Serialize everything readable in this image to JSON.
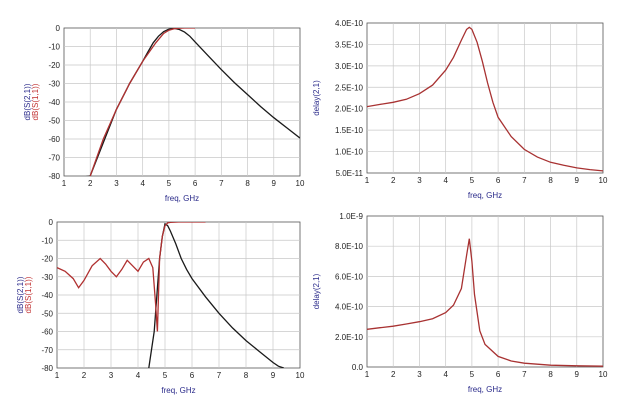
{
  "colors": {
    "s21": "#1a1a1a",
    "s11": "#b03030",
    "delay": "#a83232",
    "label_red": "#c03030",
    "label_blue": "#2a2a8a"
  },
  "chart_data": [
    {
      "type": "line",
      "xlabel": "freq, GHz",
      "ylabel_lines": [
        "dB(S(2,1))",
        "dB(S(1,1))"
      ],
      "xlim": [
        1,
        10
      ],
      "ylim": [
        -80,
        0
      ],
      "xticks": [
        "1",
        "2",
        "3",
        "4",
        "5",
        "6",
        "7",
        "8",
        "9",
        "10"
      ],
      "yticks": [
        "0",
        "-10",
        "-20",
        "-30",
        "-40",
        "-50",
        "-60",
        "-70",
        "-80"
      ],
      "series": [
        {
          "name": "dB(S(2,1))",
          "color": "#1a1a1a",
          "x": [
            1.0,
            2.0,
            3.0,
            3.5,
            4.0,
            4.2,
            4.4,
            4.6,
            4.8,
            5.0,
            5.2,
            5.4,
            5.6,
            5.8,
            6.0,
            6.5,
            7.0,
            7.5,
            8.0,
            8.5,
            9.0,
            9.5,
            10.0
          ],
          "y": [
            -82,
            -80,
            -44,
            -30,
            -18,
            -13,
            -8,
            -4.5,
            -2,
            -0.6,
            -0.2,
            -0.8,
            -2.2,
            -4.5,
            -7.5,
            -15,
            -22.5,
            -29.5,
            -36,
            -42.5,
            -48.5,
            -54,
            -59.5
          ]
        },
        {
          "name": "dB(S(1,1))",
          "color": "#b03030",
          "x": [
            2.0,
            2.5,
            3.0,
            3.5,
            4.0,
            4.5,
            4.8,
            5.0,
            5.2,
            5.4,
            5.6,
            5.8,
            6.0
          ],
          "y": [
            -80,
            -60,
            -44,
            -30,
            -18,
            -8,
            -3,
            -1.2,
            -0.4,
            -0.1,
            0,
            0,
            0
          ]
        }
      ]
    },
    {
      "type": "line",
      "xlabel": "freq, GHz",
      "ylabel_lines": [
        "delay(2,1)"
      ],
      "xlim": [
        1,
        10
      ],
      "ylim": [
        5e-11,
        4e-10
      ],
      "xticks": [
        "1",
        "2",
        "3",
        "4",
        "5",
        "6",
        "7",
        "8",
        "9",
        "10"
      ],
      "yticks": [
        "4.0E-10",
        "3.5E-10",
        "3.0E-10",
        "2.5E-10",
        "2.0E-10",
        "1.5E-10",
        "1.0E-10",
        "5.0E-11"
      ],
      "series": [
        {
          "name": "delay(2,1)",
          "color": "#a83232",
          "x": [
            1.0,
            1.5,
            2.0,
            2.5,
            3.0,
            3.5,
            4.0,
            4.3,
            4.6,
            4.8,
            4.9,
            5.0,
            5.2,
            5.4,
            5.6,
            5.8,
            6.0,
            6.5,
            7.0,
            7.5,
            8.0,
            8.5,
            9.0,
            9.5,
            10.0
          ],
          "y": [
            2.05e-10,
            2.1e-10,
            2.15e-10,
            2.22e-10,
            2.35e-10,
            2.55e-10,
            2.9e-10,
            3.2e-10,
            3.6e-10,
            3.85e-10,
            3.9e-10,
            3.85e-10,
            3.55e-10,
            3.1e-10,
            2.6e-10,
            2.15e-10,
            1.8e-10,
            1.35e-10,
            1.05e-10,
            8.7e-11,
            7.5e-11,
            6.8e-11,
            6.2e-11,
            5.8e-11,
            5.5e-11
          ]
        }
      ]
    },
    {
      "type": "line",
      "xlabel": "freq, GHz",
      "ylabel_lines": [
        "dB(S(2,1))",
        "dB(S(1,1))"
      ],
      "xlim": [
        1,
        10
      ],
      "ylim": [
        -80,
        0
      ],
      "xticks": [
        "1",
        "2",
        "3",
        "4",
        "5",
        "6",
        "7",
        "8",
        "9",
        "10"
      ],
      "yticks": [
        "0",
        "-10",
        "-20",
        "-30",
        "-40",
        "-50",
        "-60",
        "-70",
        "-80"
      ],
      "series": [
        {
          "name": "dB(S(2,1))",
          "color": "#1a1a1a",
          "x": [
            4.4,
            4.6,
            4.8,
            4.9,
            5.0,
            5.1,
            5.2,
            5.4,
            5.6,
            5.8,
            6.0,
            6.5,
            7.0,
            7.5,
            8.0,
            8.5,
            9.0,
            9.2,
            9.4
          ],
          "y": [
            -80,
            -60,
            -20,
            -8,
            -1,
            -2,
            -5,
            -12,
            -20,
            -26,
            -31,
            -41,
            -50,
            -58,
            -65,
            -71,
            -77,
            -79,
            -80
          ]
        },
        {
          "name": "dB(S(1,1))",
          "color": "#b03030",
          "x": [
            1.0,
            1.3,
            1.6,
            1.8,
            2.0,
            2.3,
            2.6,
            2.8,
            3.0,
            3.2,
            3.4,
            3.6,
            3.8,
            4.0,
            4.2,
            4.4,
            4.55,
            4.65,
            4.72,
            4.8,
            4.9,
            5.0,
            5.1,
            5.2,
            5.5,
            6.0,
            6.5
          ],
          "y": [
            -25,
            -27,
            -31,
            -36,
            -32,
            -24,
            -20,
            -23,
            -27,
            -30,
            -26,
            -21,
            -24,
            -27,
            -22,
            -20,
            -25,
            -45,
            -60,
            -20,
            -8,
            -2,
            -0.5,
            -0.2,
            0,
            0,
            0
          ]
        }
      ]
    },
    {
      "type": "line",
      "xlabel": "freq, GHz",
      "ylabel_lines": [
        "delay(2,1)"
      ],
      "xlim": [
        1,
        10
      ],
      "ylim": [
        0,
        1e-09
      ],
      "xticks": [
        "1",
        "2",
        "3",
        "4",
        "5",
        "6",
        "7",
        "8",
        "9",
        "10"
      ],
      "yticks": [
        "1.0E-9",
        "8.0E-10",
        "6.0E-10",
        "4.0E-10",
        "2.0E-10",
        "0.0"
      ],
      "series": [
        {
          "name": "delay(2,1)",
          "color": "#a83232",
          "x": [
            1.0,
            1.5,
            2.0,
            2.5,
            3.0,
            3.5,
            4.0,
            4.3,
            4.6,
            4.8,
            4.9,
            5.0,
            5.1,
            5.3,
            5.5,
            6.0,
            6.5,
            7.0,
            8.0,
            9.0,
            10.0
          ],
          "y": [
            2.5e-10,
            2.6e-10,
            2.7e-10,
            2.85e-10,
            3e-10,
            3.2e-10,
            3.6e-10,
            4.1e-10,
            5.2e-10,
            7.4e-10,
            8.5e-10,
            7e-10,
            4.8e-10,
            2.4e-10,
            1.5e-10,
            7e-11,
            4e-11,
            2.5e-11,
            1.2e-11,
            8e-12,
            5e-12
          ]
        }
      ]
    }
  ]
}
